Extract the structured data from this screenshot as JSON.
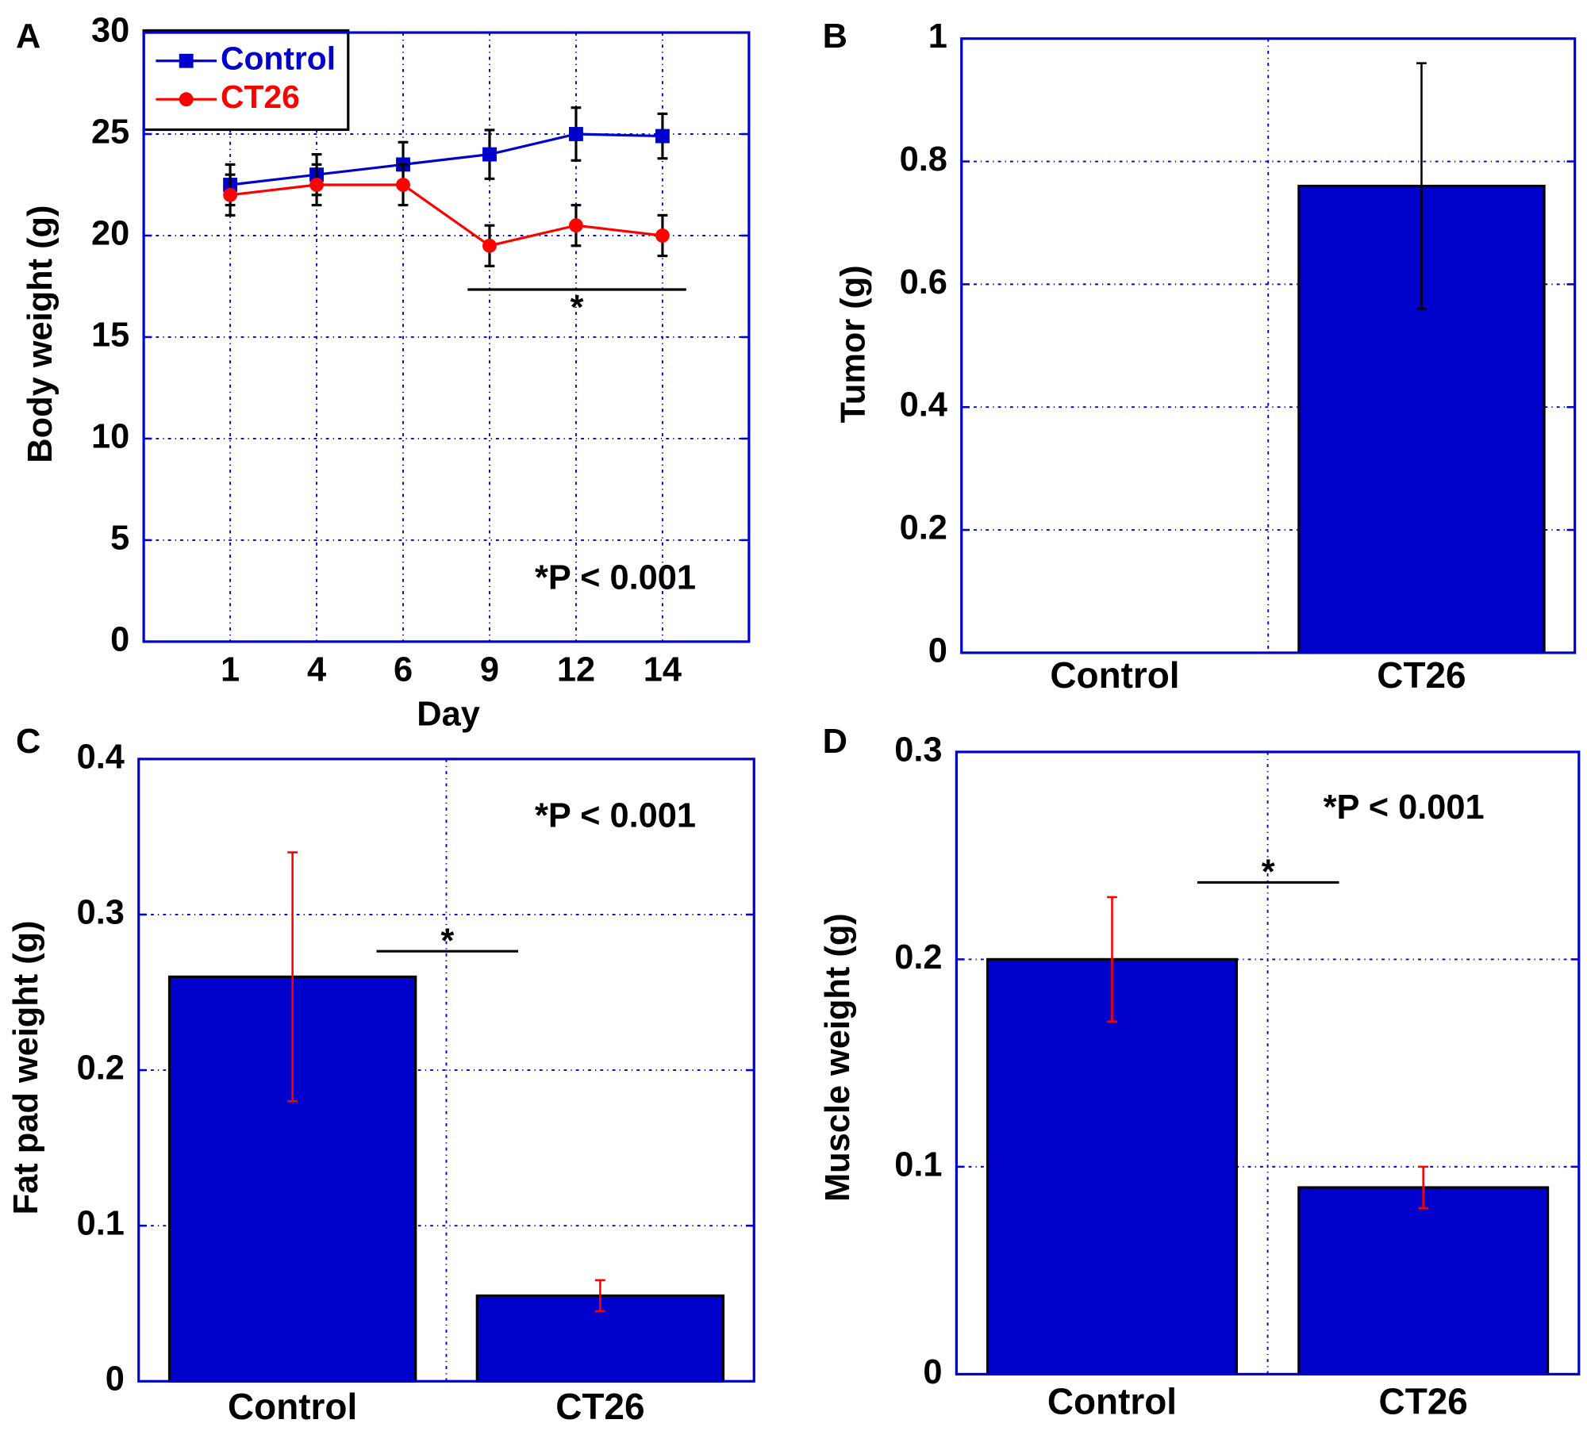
{
  "colors": {
    "axis": "#0000cc",
    "bar": "#0000cc",
    "control": "#0000cc",
    "ct26": "#ff0000",
    "error_black": "#000000",
    "error_red": "#ff0000"
  },
  "chart_data": [
    {
      "panel": "A",
      "type": "line",
      "xlabel": "Day",
      "ylabel": "Body weight (g)",
      "categories": [
        "1",
        "4",
        "6",
        "9",
        "12",
        "14"
      ],
      "ylim": [
        0,
        30
      ],
      "yticks": [
        "0",
        "5",
        "10",
        "15",
        "20",
        "25",
        "30"
      ],
      "grid": true,
      "legend": "top-left",
      "series": [
        {
          "name": "Control",
          "color": "#0000cc",
          "marker": "square",
          "values": [
            22.5,
            23,
            23.5,
            24,
            25,
            24.9
          ],
          "errors": [
            1.0,
            1.0,
            1.1,
            1.2,
            1.3,
            1.1
          ]
        },
        {
          "name": "CT26",
          "color": "#ff0000",
          "marker": "circle",
          "values": [
            22,
            22.5,
            22.5,
            19.5,
            20.5,
            20
          ],
          "errors": [
            1.0,
            1.0,
            1.0,
            1.0,
            1.0,
            1.0
          ]
        }
      ],
      "significance": {
        "from": "9",
        "to": "14",
        "label": "*"
      },
      "annotation": "*P < 0.001"
    },
    {
      "panel": "B",
      "type": "bar",
      "ylabel": "Tumor (g)",
      "categories": [
        "Control",
        "CT26"
      ],
      "values": [
        0,
        0.76
      ],
      "errors": [
        0,
        0.2
      ],
      "error_color": "#000000",
      "ylim": [
        0,
        1
      ],
      "yticks": [
        "0",
        "0.2",
        "0.4",
        "0.6",
        "0.8",
        "1"
      ],
      "grid": true
    },
    {
      "panel": "C",
      "type": "bar",
      "ylabel": "Fat pad weight (g)",
      "categories": [
        "Control",
        "CT26"
      ],
      "values": [
        0.26,
        0.055
      ],
      "errors": [
        0.08,
        0.01
      ],
      "error_color": "#ff0000",
      "ylim": [
        0,
        0.4
      ],
      "yticks": [
        "0",
        "0.1",
        "0.2",
        "0.3",
        "0.4"
      ],
      "grid": true,
      "significance": {
        "label": "*"
      },
      "annotation": "*P < 0.001"
    },
    {
      "panel": "D",
      "type": "bar",
      "ylabel": "Muscle weight (g)",
      "categories": [
        "Control",
        "CT26"
      ],
      "values": [
        0.2,
        0.09
      ],
      "errors": [
        0.03,
        0.01
      ],
      "error_color": "#ff0000",
      "ylim": [
        0,
        0.3
      ],
      "yticks": [
        "0",
        "0.1",
        "0.2",
        "0.3"
      ],
      "grid": true,
      "significance": {
        "label": "*"
      },
      "annotation": "*P < 0.001"
    }
  ]
}
